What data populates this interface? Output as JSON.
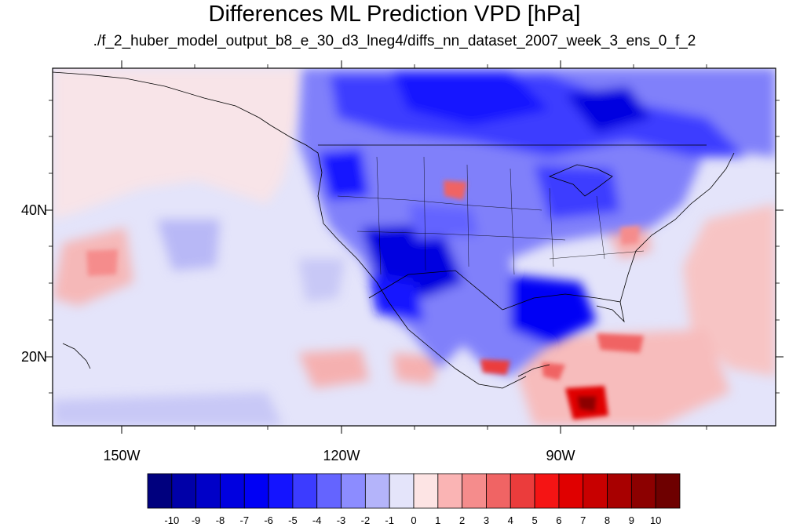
{
  "title": "Differences ML Prediction VPD [hPa]",
  "subtitle": "./f_2_huber_model_output_b8_e_30_d3_lneg4/diffs_nn_dataset_2007_week_3_ens_0_f_2",
  "map": {
    "projection": "cylindrical equidistant",
    "lon_range": [
      -160,
      -60
    ],
    "lat_range": [
      11,
      60
    ],
    "lon_ticks": [
      "150W",
      "120W",
      "90W"
    ],
    "lat_ticks": [
      "40N",
      "20N"
    ],
    "field": "VPD difference",
    "units": "hPa"
  },
  "colorbar": {
    "labels": [
      "-10",
      "-9",
      "-8",
      "-7",
      "-6",
      "-5",
      "-4",
      "-3",
      "-2",
      "-1",
      "0",
      "1",
      "2",
      "3",
      "4",
      "5",
      "6",
      "7",
      "8",
      "9",
      "10"
    ],
    "colors": [
      "#00007e",
      "#0000a8",
      "#0000c8",
      "#0000e0",
      "#0000f5",
      "#1414ff",
      "#3c3cff",
      "#6464ff",
      "#8c8cff",
      "#b4b4fa",
      "#e4e4fa",
      "#fde4e4",
      "#fab4b4",
      "#f58c8c",
      "#f06464",
      "#eb3c3c",
      "#f51414",
      "#e00000",
      "#c80000",
      "#a80000",
      "#8c0000",
      "#6e0000"
    ]
  }
}
